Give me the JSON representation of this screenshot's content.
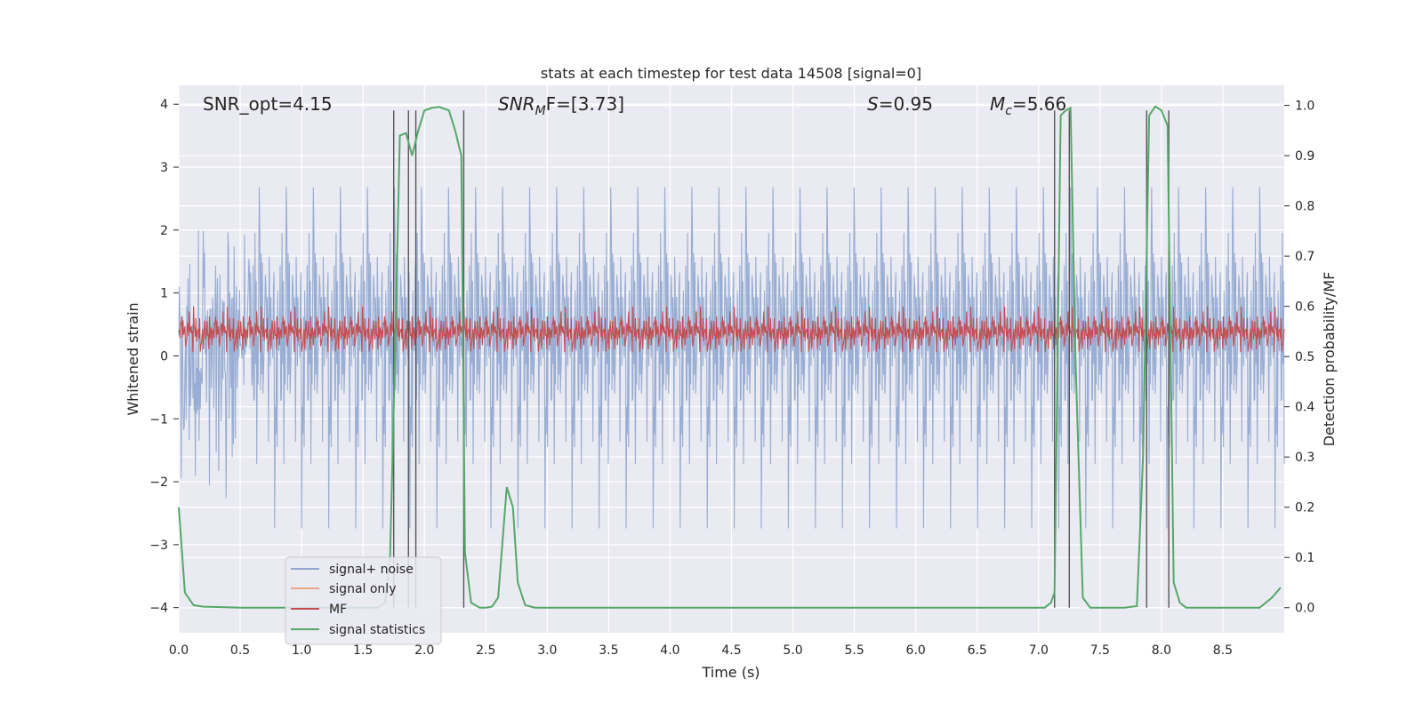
{
  "chart_data": {
    "type": "line",
    "title": "stats at each timestep for test data 14508 [signal=0]",
    "xlabel": "Time (s)",
    "ylabel_left": "Whitened strain",
    "ylabel_right": "Detection probability/MF",
    "xlim": [
      0.0,
      9.0
    ],
    "ylim_left": [
      -4.4,
      4.3
    ],
    "ylim_right": [
      -0.05,
      1.04
    ],
    "xticks": [
      "0.0",
      "0.5",
      "1.0",
      "1.5",
      "2.0",
      "2.5",
      "3.0",
      "3.5",
      "4.0",
      "4.5",
      "5.0",
      "5.5",
      "6.0",
      "6.5",
      "7.0",
      "7.5",
      "8.0",
      "8.5"
    ],
    "yticks_left": [
      "4",
      "3",
      "2",
      "1",
      "0",
      "−1",
      "−2",
      "−3",
      "−4"
    ],
    "yticks_right": [
      "1.0",
      "0.9",
      "0.8",
      "0.7",
      "0.6",
      "0.5",
      "0.4",
      "0.3",
      "0.2",
      "0.1",
      "0.0"
    ],
    "grid": true,
    "legend_position": "lower-left",
    "annotations": {
      "snr_opt": "SNR_opt=4.15",
      "snr_mf_main": "SNR",
      "snr_mf_sub": "M",
      "snr_mf_rest": "F=[3.73]",
      "s_main": "S",
      "s_rest": "=0.95",
      "mc_main": "M",
      "mc_sub": "c",
      "mc_rest": "=5.66"
    },
    "vertical_lines_x": [
      1.75,
      1.87,
      1.93,
      2.32,
      7.13,
      7.25,
      7.88,
      8.06
    ],
    "series": [
      {
        "name": "signal+ noise",
        "color": "#8fa6cf",
        "axis": "left",
        "style": "dense noise, amplitude approx ±2.5 with peaks to ±4"
      },
      {
        "name": "signal only",
        "color": "#e8a889",
        "axis": "left",
        "style": "flat at 0 (hidden)"
      },
      {
        "name": "MF",
        "color": "#c44e52",
        "axis": "left",
        "style": "dense noise band between 0 and 1"
      },
      {
        "name": "signal statistics",
        "color": "#55a868",
        "axis": "right",
        "x": [
          0.0,
          0.05,
          0.12,
          0.2,
          0.5,
          1.0,
          1.5,
          1.62,
          1.68,
          1.72,
          1.76,
          1.8,
          1.85,
          1.9,
          1.95,
          2.0,
          2.06,
          2.12,
          2.2,
          2.25,
          2.3,
          2.33,
          2.38,
          2.45,
          2.5,
          2.55,
          2.6,
          2.67,
          2.72,
          2.76,
          2.82,
          2.9,
          3.0,
          4.0,
          5.0,
          6.0,
          7.0,
          7.05,
          7.1,
          7.13,
          7.18,
          7.22,
          7.26,
          7.3,
          7.36,
          7.42,
          7.5,
          7.7,
          7.8,
          7.85,
          7.9,
          7.95,
          8.0,
          8.05,
          8.1,
          8.15,
          8.2,
          8.5,
          8.8,
          8.9,
          8.97
        ],
        "values": [
          0.2,
          0.03,
          0.005,
          0.002,
          0.0,
          0.0,
          0.0,
          0.0,
          0.01,
          0.1,
          0.5,
          0.94,
          0.945,
          0.9,
          0.95,
          0.99,
          0.995,
          0.997,
          0.99,
          0.95,
          0.9,
          0.11,
          0.01,
          0.0,
          0.0,
          0.002,
          0.02,
          0.24,
          0.2,
          0.05,
          0.005,
          0.0,
          0.0,
          0.0,
          0.0,
          0.0,
          0.0,
          0.0,
          0.01,
          0.03,
          0.98,
          0.99,
          0.995,
          0.5,
          0.02,
          0.0,
          0.0,
          0.0,
          0.003,
          0.3,
          0.98,
          0.998,
          0.99,
          0.96,
          0.05,
          0.01,
          0.0,
          0.0,
          0.0,
          0.02,
          0.04
        ]
      }
    ]
  }
}
